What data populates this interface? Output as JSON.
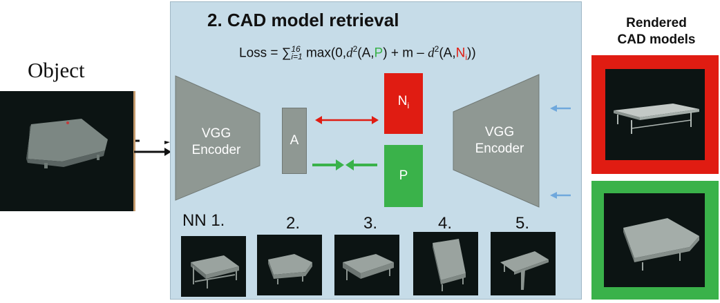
{
  "object_label": "Object",
  "panel": {
    "title": "2. CAD model  retrieval",
    "loss": {
      "prefix": "Loss = ",
      "sum_sup": "16",
      "sum_sub": "i=1",
      "max_open": " max(0,",
      "d2a": "d",
      "sq": "2",
      "ap": "(A,",
      "p": "P",
      "close1": ") + m – ",
      "d2b": "d",
      "sq2": "2",
      "an": "(A,",
      "n": "N",
      "n_sub": "i",
      "close2": "))"
    },
    "encoder_left": "VGG\nEncoder",
    "encoder_right": "VGG\nEncoder",
    "anchor": "A",
    "negative": "N",
    "negative_sub": "i",
    "positive": "P",
    "nn_labels": [
      "NN  1.",
      "2.",
      "3.",
      "4.",
      "5."
    ]
  },
  "right": {
    "title_line1": "Rendered",
    "title_line2": "CAD models"
  },
  "colors": {
    "panel_bg": "#c6dce8",
    "encoder_gray": "#8f9893",
    "negative_red": "#e01c12",
    "positive_green": "#3ab24a",
    "arrow_blue": "#6fa8dc"
  }
}
